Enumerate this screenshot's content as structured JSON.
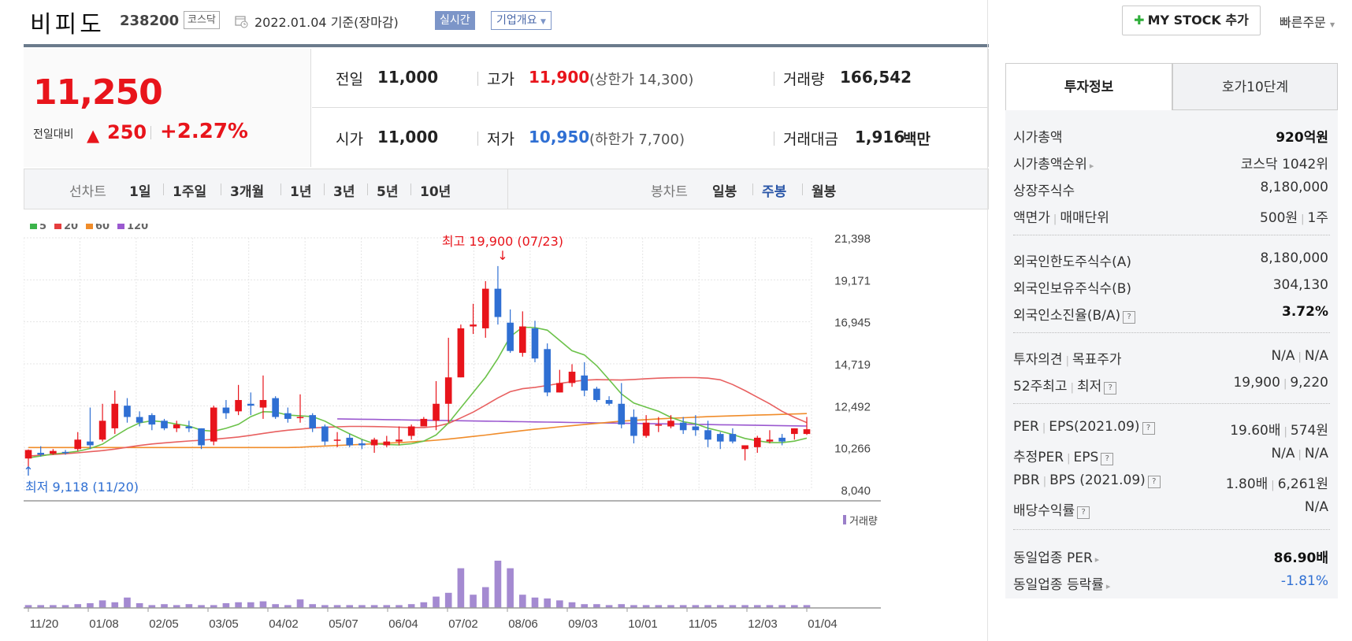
{
  "header": {
    "stock_name": "비피도",
    "stock_code": "238200",
    "market": "코스닥",
    "date": "2022.01.04 기준(장마감)",
    "realtime_label": "실시간",
    "overview_label": "기업개요",
    "mystock_label": "MY STOCK 추가",
    "quick_order": "빠른주문"
  },
  "price": {
    "current": "11,250",
    "change_label": "전일대비",
    "change_amount": "250",
    "change_percent": "+2.27%",
    "prev_label": "전일",
    "prev_value": "11,000",
    "open_label": "시가",
    "open_value": "11,000",
    "high_label": "고가",
    "high_value": "11,900",
    "upper_limit": "(상한가 14,300)",
    "low_label": "저가",
    "low_value": "10,950",
    "lower_limit": "(하한가 7,700)",
    "volume_label": "거래량",
    "volume_value": "166,542",
    "amount_label": "거래대금",
    "amount_value": "1,916",
    "amount_unit": "백만"
  },
  "chart_tabs": {
    "line_label": "선차트",
    "line_items": [
      "1일",
      "1주일",
      "3개월",
      "1년",
      "3년",
      "5년",
      "10년"
    ],
    "candle_label": "봉차트",
    "candle_items": [
      "일봉",
      "주봉",
      "월봉"
    ],
    "active_candle": "주봉"
  },
  "right_panel": {
    "tabs": [
      "투자정보",
      "호가10단계"
    ],
    "rows1": [
      {
        "label": "시가총액",
        "value": "920억원"
      },
      {
        "label": "시가총액순위",
        "value": "코스닥 1042위"
      },
      {
        "label": "상장주식수",
        "value": "8,180,000"
      },
      {
        "label": "액면가",
        "label2": "매매단위",
        "value": "500원",
        "value2": "1주"
      }
    ],
    "rows2": [
      {
        "label": "외국인한도주식수(A)",
        "value": "8,180,000"
      },
      {
        "label": "외국인보유주식수(B)",
        "value": "304,130"
      },
      {
        "label": "외국인소진율(B/A)",
        "value": "3.72%"
      }
    ],
    "rows3": [
      {
        "label": "투자의견",
        "label2": "목표주가",
        "value": "N/A",
        "value2": "N/A"
      },
      {
        "label": "52주최고",
        "label2": "최저",
        "value": "19,900",
        "value2": "9,220"
      }
    ],
    "rows4": [
      {
        "label": "PER",
        "label2": "EPS(2021.09)",
        "value": "19.60배",
        "value2": "574원"
      },
      {
        "label": "추정PER",
        "label2": "EPS",
        "value": "N/A",
        "value2": "N/A"
      },
      {
        "label": "PBR",
        "label2": "BPS (2021.09)",
        "value": "1.80배",
        "value2": "6,261원"
      },
      {
        "label": "배당수익률",
        "value": "N/A"
      }
    ],
    "rows5": [
      {
        "label": "동일업종 PER",
        "value": "86.90배"
      },
      {
        "label": "동일업종 등락률",
        "value": "-1.81%"
      }
    ]
  },
  "chart_data": {
    "type": "candlestick",
    "legend": [
      {
        "name": "5",
        "color": "#3cb44b"
      },
      {
        "name": "20",
        "color": "#e53e3e"
      },
      {
        "name": "60",
        "color": "#f08c2a"
      },
      {
        "name": "120",
        "color": "#9b59d0"
      }
    ],
    "y_ticks": [
      "21,398",
      "19,171",
      "16,945",
      "14,719",
      "12,492",
      "10,266",
      "8,040"
    ],
    "ylim": [
      8040,
      21398
    ],
    "x_ticks": [
      "11/20",
      "01/08",
      "02/05",
      "03/05",
      "04/02",
      "05/07",
      "06/04",
      "07/02",
      "08/06",
      "09/03",
      "10/01",
      "11/05",
      "12/03",
      "01/04"
    ],
    "high_annotation": "최고 19,900 (07/23)",
    "low_annotation": "최저 9,118 (11/20)",
    "volume_label": "거래량",
    "up_color": "#e8141b",
    "down_color": "#2f6fd3",
    "candles": [
      [
        9700,
        10150,
        9118,
        10180
      ],
      [
        10000,
        9900,
        9800,
        10350
      ],
      [
        9950,
        10100,
        9900,
        10200
      ],
      [
        10050,
        10000,
        9900,
        10150
      ],
      [
        10200,
        10700,
        10100,
        11100
      ],
      [
        10600,
        10400,
        10200,
        12400
      ],
      [
        10700,
        11700,
        10600,
        12600
      ],
      [
        11300,
        12600,
        11000,
        13300
      ],
      [
        12500,
        11900,
        11600,
        12900
      ],
      [
        11900,
        11600,
        11400,
        12200
      ],
      [
        12000,
        11500,
        11200,
        12100
      ],
      [
        11700,
        11300,
        11200,
        11800
      ],
      [
        11300,
        11500,
        11100,
        11700
      ],
      [
        11400,
        11300,
        11100,
        11700
      ],
      [
        11300,
        10400,
        10200,
        11300
      ],
      [
        10600,
        12400,
        10400,
        12500
      ],
      [
        12400,
        12100,
        11800,
        12800
      ],
      [
        12200,
        12800,
        12000,
        13600
      ],
      [
        12600,
        12500,
        12000,
        13200
      ],
      [
        12400,
        12800,
        11800,
        14100
      ],
      [
        12900,
        11900,
        11800,
        13000
      ],
      [
        12100,
        11800,
        11600,
        12400
      ],
      [
        11900,
        11900,
        11600,
        13100
      ],
      [
        12000,
        11300,
        11100,
        12100
      ],
      [
        11400,
        10600,
        10400,
        11500
      ],
      [
        10700,
        10700,
        10300,
        11100
      ],
      [
        10800,
        10400,
        10300,
        11000
      ],
      [
        10500,
        10400,
        10200,
        10700
      ],
      [
        10400,
        10700,
        10000,
        10800
      ],
      [
        10400,
        10600,
        10300,
        10900
      ],
      [
        10600,
        10700,
        10400,
        11400
      ],
      [
        10900,
        11400,
        10700,
        11500
      ],
      [
        11400,
        11800,
        11400,
        11900
      ],
      [
        11700,
        12600,
        11200,
        13800
      ],
      [
        12600,
        14000,
        11600,
        16100
      ],
      [
        14000,
        16600,
        14000,
        16800
      ],
      [
        16700,
        16800,
        16300,
        17900
      ],
      [
        16600,
        18700,
        16100,
        19100
      ],
      [
        18700,
        17200,
        16800,
        19900
      ],
      [
        16900,
        15400,
        15300,
        17600
      ],
      [
        15300,
        16700,
        15100,
        17500
      ],
      [
        16600,
        15000,
        14800,
        17000
      ],
      [
        15500,
        13200,
        13000,
        15800
      ],
      [
        13200,
        13700,
        13200,
        14400
      ],
      [
        13700,
        14300,
        13500,
        14700
      ],
      [
        14100,
        13300,
        13000,
        14800
      ],
      [
        13400,
        12800,
        12700,
        13500
      ],
      [
        12800,
        12600,
        12500,
        13000
      ],
      [
        12600,
        11500,
        11300,
        13700
      ],
      [
        11900,
        10900,
        10500,
        12300
      ],
      [
        10900,
        11600,
        10800,
        12000
      ],
      [
        11500,
        11500,
        11100,
        11900
      ],
      [
        11400,
        11700,
        11300,
        12000
      ],
      [
        11600,
        11200,
        11000,
        11900
      ],
      [
        11400,
        11200,
        10900,
        12000
      ],
      [
        11200,
        10700,
        10300,
        11700
      ],
      [
        11000,
        10600,
        10200,
        11100
      ],
      [
        11000,
        10600,
        10500,
        11300
      ],
      [
        10200,
        10400,
        9600,
        10400
      ],
      [
        10300,
        10800,
        10000,
        10900
      ],
      [
        10600,
        10700,
        10500,
        11200
      ],
      [
        10800,
        10600,
        10400,
        11000
      ],
      [
        11000,
        11300,
        10700,
        11300
      ],
      [
        11000,
        11250,
        10950,
        11900
      ]
    ],
    "volumes": [
      3,
      3,
      3,
      3,
      4,
      5,
      8,
      6,
      11,
      5,
      3,
      4,
      3,
      4,
      3,
      3,
      5,
      6,
      6,
      7,
      4,
      3,
      9,
      4,
      3,
      3,
      3,
      3,
      3,
      3,
      3,
      4,
      6,
      12,
      16,
      42,
      14,
      22,
      50,
      42,
      14,
      11,
      10,
      8,
      6,
      4,
      4,
      3,
      4,
      3,
      3,
      3,
      3,
      3,
      3,
      3,
      3,
      3,
      3,
      3,
      3,
      3,
      3,
      3
    ],
    "ma5": [
      9730,
      9830,
      9940,
      10000,
      10080,
      10230,
      10460,
      10880,
      11280,
      11590,
      11700,
      11640,
      11520,
      11420,
      11200,
      11140,
      11300,
      11510,
      11920,
      12180,
      12160,
      12000,
      11960,
      11920,
      11680,
      11330,
      11010,
      10710,
      10480,
      10440,
      10420,
      10480,
      10620,
      10950,
      11580,
      12390,
      13200,
      14010,
      15000,
      16160,
      16660,
      16640,
      16500,
      15960,
      15410,
      15190,
      14620,
      13880,
      13120,
      12640,
      12420,
      12200,
      11880,
      11650,
      11540,
      11310,
      11150,
      10970,
      10760,
      10640,
      10540,
      10540,
      10620,
      10780
    ],
    "ma20": [
      9830,
      9870,
      9910,
      9950,
      10000,
      10060,
      10120,
      10200,
      10300,
      10390,
      10470,
      10530,
      10580,
      10630,
      10670,
      10720,
      10780,
      10840,
      10930,
      11030,
      11120,
      11200,
      11260,
      11320,
      11350,
      11380,
      11400,
      11400,
      11390,
      11380,
      11360,
      11340,
      11340,
      11400,
      11560,
      11850,
      12160,
      12530,
      12910,
      13240,
      13400,
      13470,
      13570,
      13680,
      13770,
      13850,
      13880,
      13870,
      13860,
      13890,
      13930,
      13960,
      13980,
      13990,
      13990,
      13960,
      13870,
      13620,
      13300,
      12950,
      12600,
      12200,
      11880,
      11600
    ],
    "ma60": [
      10280,
      10280,
      10280,
      10280,
      10280,
      10280,
      10280,
      10280,
      10280,
      10280,
      10280,
      10280,
      10280,
      10280,
      10280,
      10280,
      10280,
      10280,
      10280,
      10280,
      10280,
      10280,
      10300,
      10330,
      10360,
      10390,
      10420,
      10450,
      10480,
      10510,
      10540,
      10580,
      10620,
      10670,
      10730,
      10800,
      10870,
      10940,
      11020,
      11100,
      11180,
      11250,
      11310,
      11380,
      11440,
      11500,
      11560,
      11620,
      11680,
      11720,
      11760,
      11800,
      11830,
      11860,
      11890,
      11920,
      11940,
      11960,
      11980,
      12000,
      12020,
      12040,
      12060,
      12080
    ],
    "ma120": [
      null,
      null,
      null,
      null,
      null,
      null,
      null,
      null,
      null,
      null,
      null,
      null,
      null,
      null,
      null,
      null,
      null,
      null,
      null,
      null,
      null,
      null,
      null,
      null,
      null,
      11800,
      11790,
      11780,
      11770,
      11760,
      11750,
      11740,
      11730,
      11720,
      11710,
      11700,
      11690,
      11680,
      11670,
      11660,
      11650,
      11640,
      11630,
      11620,
      11610,
      11600,
      11590,
      11580,
      11570,
      11560,
      11550,
      11540,
      11530,
      11520,
      11510,
      11500,
      11490,
      11480,
      11470,
      11460,
      11450,
      11440,
      11430,
      11420
    ]
  }
}
